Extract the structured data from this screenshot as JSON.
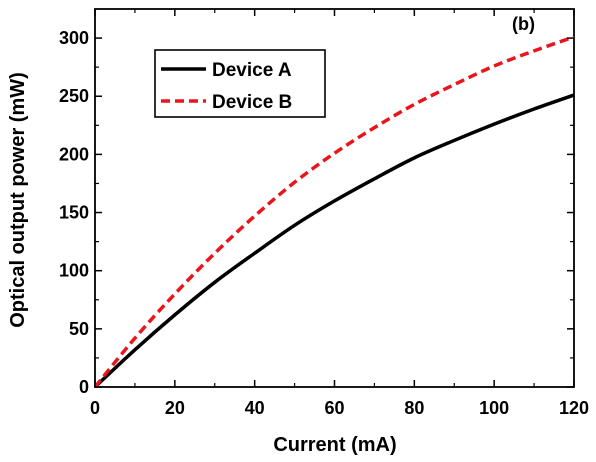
{
  "chart_data": {
    "type": "line",
    "panel_label": "(b)",
    "xlabel": "Current (mA)",
    "ylabel": "Optical output power (mW)",
    "xlim": [
      0,
      120
    ],
    "ylim": [
      0,
      325
    ],
    "xticks": [
      0,
      20,
      40,
      60,
      80,
      100,
      120
    ],
    "yticks": [
      0,
      50,
      100,
      150,
      200,
      250,
      300
    ],
    "grid": false,
    "legend_position": "top-left",
    "x": [
      0,
      10,
      20,
      30,
      40,
      50,
      60,
      70,
      80,
      90,
      100,
      110,
      120
    ],
    "series": [
      {
        "name": "Device A",
        "color": "#000000",
        "style": "solid",
        "values": [
          0,
          32,
          62,
          90,
          115,
          139,
          160,
          179,
          197,
          212,
          226,
          239,
          251
        ]
      },
      {
        "name": "Device B",
        "color": "#e8161c",
        "style": "dashed",
        "values": [
          0,
          42,
          80,
          115,
          147,
          176,
          201,
          223,
          243,
          260,
          276,
          289,
          301
        ]
      }
    ]
  }
}
